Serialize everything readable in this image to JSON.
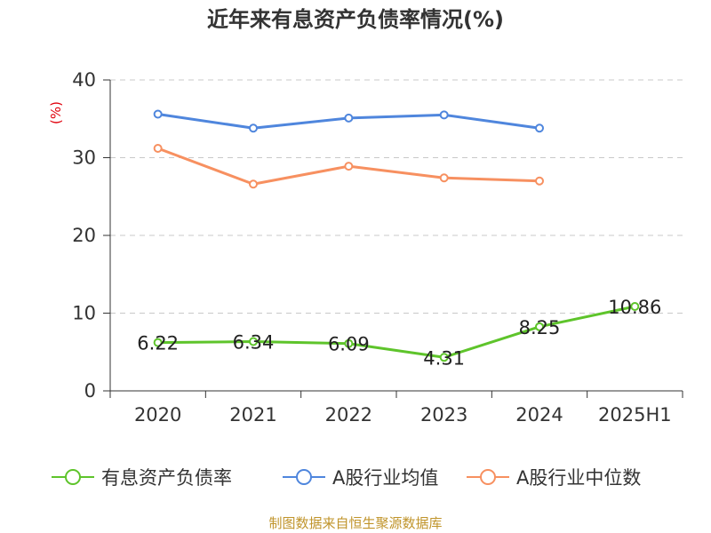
{
  "chart_data": {
    "type": "line",
    "title": "近年来有息资产负债率情况(%)",
    "ylabel": "(%)",
    "xlabel": "",
    "categories": [
      "2020",
      "2021",
      "2022",
      "2023",
      "2024",
      "2025H1"
    ],
    "ylim": [
      0,
      40
    ],
    "yticks": [
      0,
      10,
      20,
      30,
      40
    ],
    "grid": true,
    "legend_position": "bottom",
    "series": [
      {
        "name": "有息资产负债率",
        "color": "#5ec42b",
        "labels": true,
        "values": [
          6.22,
          6.34,
          6.09,
          4.31,
          8.25,
          10.86
        ]
      },
      {
        "name": "A股行业均值",
        "color": "#4f86dd",
        "labels": false,
        "values": [
          35.6,
          33.8,
          35.1,
          35.5,
          33.8,
          null
        ]
      },
      {
        "name": "A股行业中位数",
        "color": "#f79060",
        "labels": false,
        "values": [
          31.2,
          26.6,
          28.9,
          27.4,
          27.0,
          null
        ]
      }
    ]
  },
  "source": "制图数据来自恒生聚源数据库"
}
